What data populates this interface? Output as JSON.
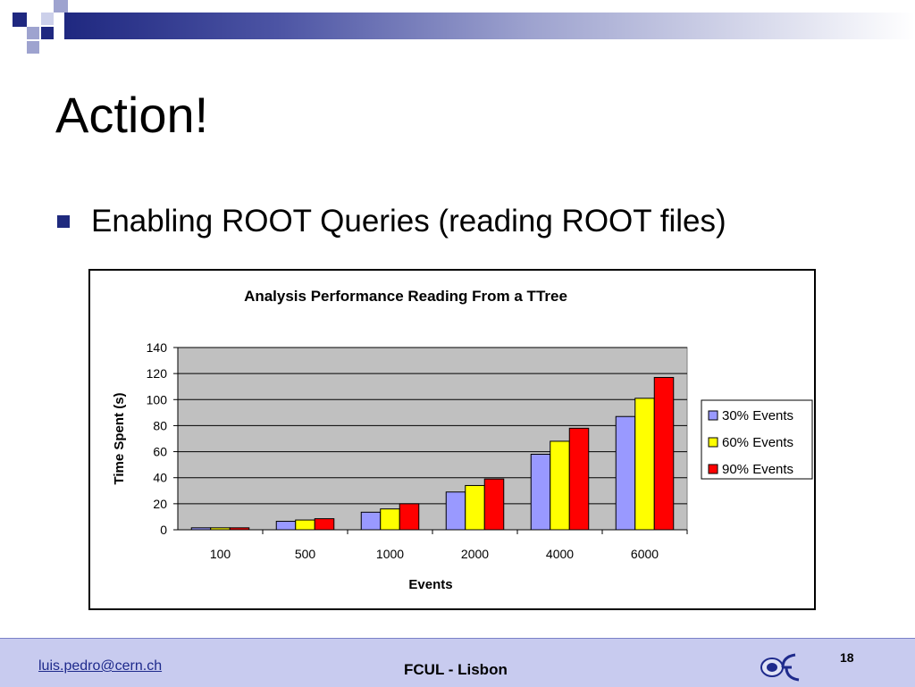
{
  "slide": {
    "title": "Action!",
    "bullet": "Enabling ROOT Queries (reading ROOT files)"
  },
  "footer": {
    "email": "luis.pedro@cern.ch",
    "center": "FCUL - Lisbon",
    "page": "18"
  },
  "colors": {
    "accent": "#1f2a7e",
    "footer_bg": "#c8cbef",
    "plot_bg": "#c0c0c0"
  },
  "chart_data": {
    "type": "bar",
    "title": "Analysis Performance Reading From a TTree",
    "xlabel": "Events",
    "ylabel": "Time Spent (s)",
    "categories": [
      "100",
      "500",
      "1000",
      "2000",
      "4000",
      "6000"
    ],
    "ylim": [
      0,
      140
    ],
    "yticks": [
      0,
      20,
      40,
      60,
      80,
      100,
      120,
      140
    ],
    "grid": true,
    "legend_position": "right",
    "series": [
      {
        "name": "30% Events",
        "color": "#9999ff",
        "values": [
          1.5,
          6.5,
          13.5,
          29,
          58,
          87
        ]
      },
      {
        "name": "60% Events",
        "color": "#ffff00",
        "values": [
          1.5,
          7.5,
          16,
          34,
          68,
          101
        ]
      },
      {
        "name": "90% Events",
        "color": "#ff0000",
        "values": [
          1.5,
          8.5,
          20,
          39,
          78,
          117
        ]
      }
    ]
  }
}
